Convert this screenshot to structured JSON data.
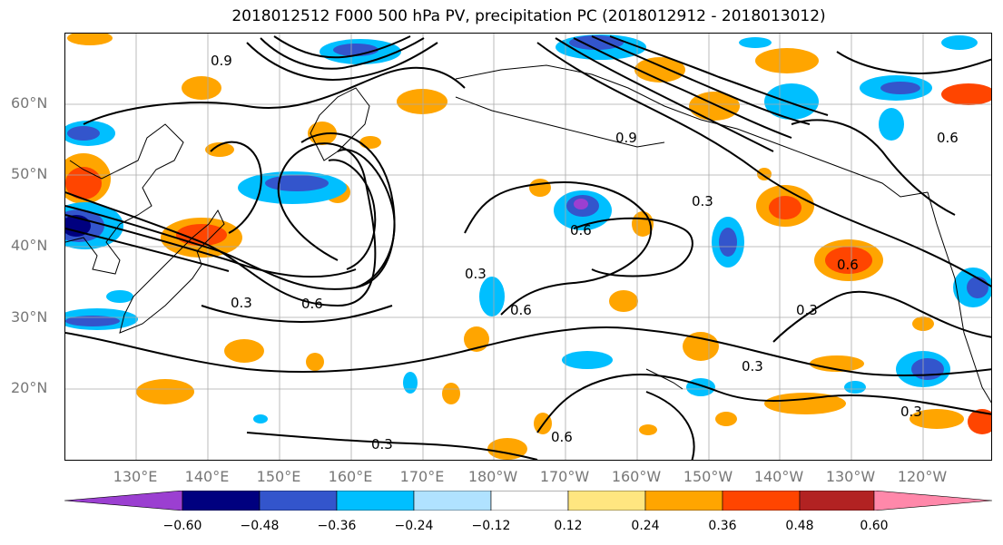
{
  "title": "2018012512 F000 500 hPa PV, precipitation PC (2018012912 - 2018013012)",
  "lat_labels": [
    "60°N",
    "50°N",
    "40°N",
    "30°N",
    "20°N"
  ],
  "lon_labels": [
    "130°E",
    "140°E",
    "150°E",
    "160°E",
    "170°E",
    "180°W",
    "170°W",
    "160°W",
    "150°W",
    "140°W",
    "130°W",
    "120°W"
  ],
  "contour_labels": [
    "0.9",
    "0.3",
    "0.6",
    "0.9",
    "0.6",
    "0.3",
    "0.6",
    "0.6",
    "0.3",
    "0.3",
    "0.6",
    "0.3",
    "0.3",
    "0.6",
    "0.3"
  ],
  "colorbar": {
    "colors": [
      "#9b3fd1",
      "#00007f",
      "#3355cc",
      "#00bfff",
      "#b0e2ff",
      "#ffffff",
      "#ffe680",
      "#ffa500",
      "#ff4500",
      "#b22222",
      "#ff88aa"
    ],
    "tick_labels": [
      "−0.60",
      "−0.48",
      "−0.36",
      "−0.24",
      "−0.12",
      "0.12",
      "0.24",
      "0.36",
      "0.48",
      "0.60"
    ]
  },
  "fill_colors": {
    "pos_light": "#ffe680",
    "pos_mid": "#ffa500",
    "pos_strong": "#ff4500",
    "neg_light": "#b0e2ff",
    "neg_mid": "#00bfff",
    "neg_strong": "#3355cc",
    "neg_max": "#9b3fd1"
  }
}
